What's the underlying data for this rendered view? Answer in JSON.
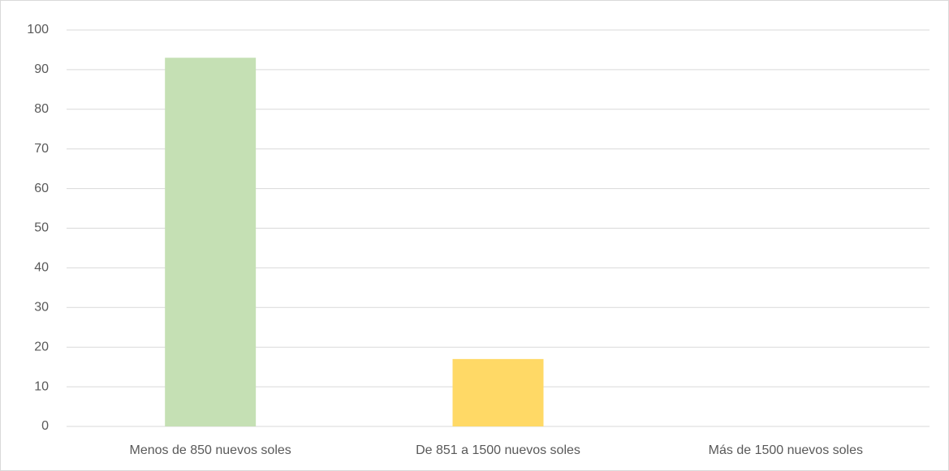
{
  "chart_data": {
    "type": "bar",
    "categories": [
      "Menos de 850 nuevos soles",
      "De 851 a 1500 nuevos soles",
      "Más de 1500 nuevos soles"
    ],
    "values": [
      93,
      17,
      0
    ],
    "colors": [
      "#c5e0b4",
      "#ffd966",
      "#bdd7ee"
    ],
    "ylim": [
      0,
      100
    ],
    "yticks": [
      0,
      10,
      20,
      30,
      40,
      50,
      60,
      70,
      80,
      90,
      100
    ],
    "grid": true
  }
}
